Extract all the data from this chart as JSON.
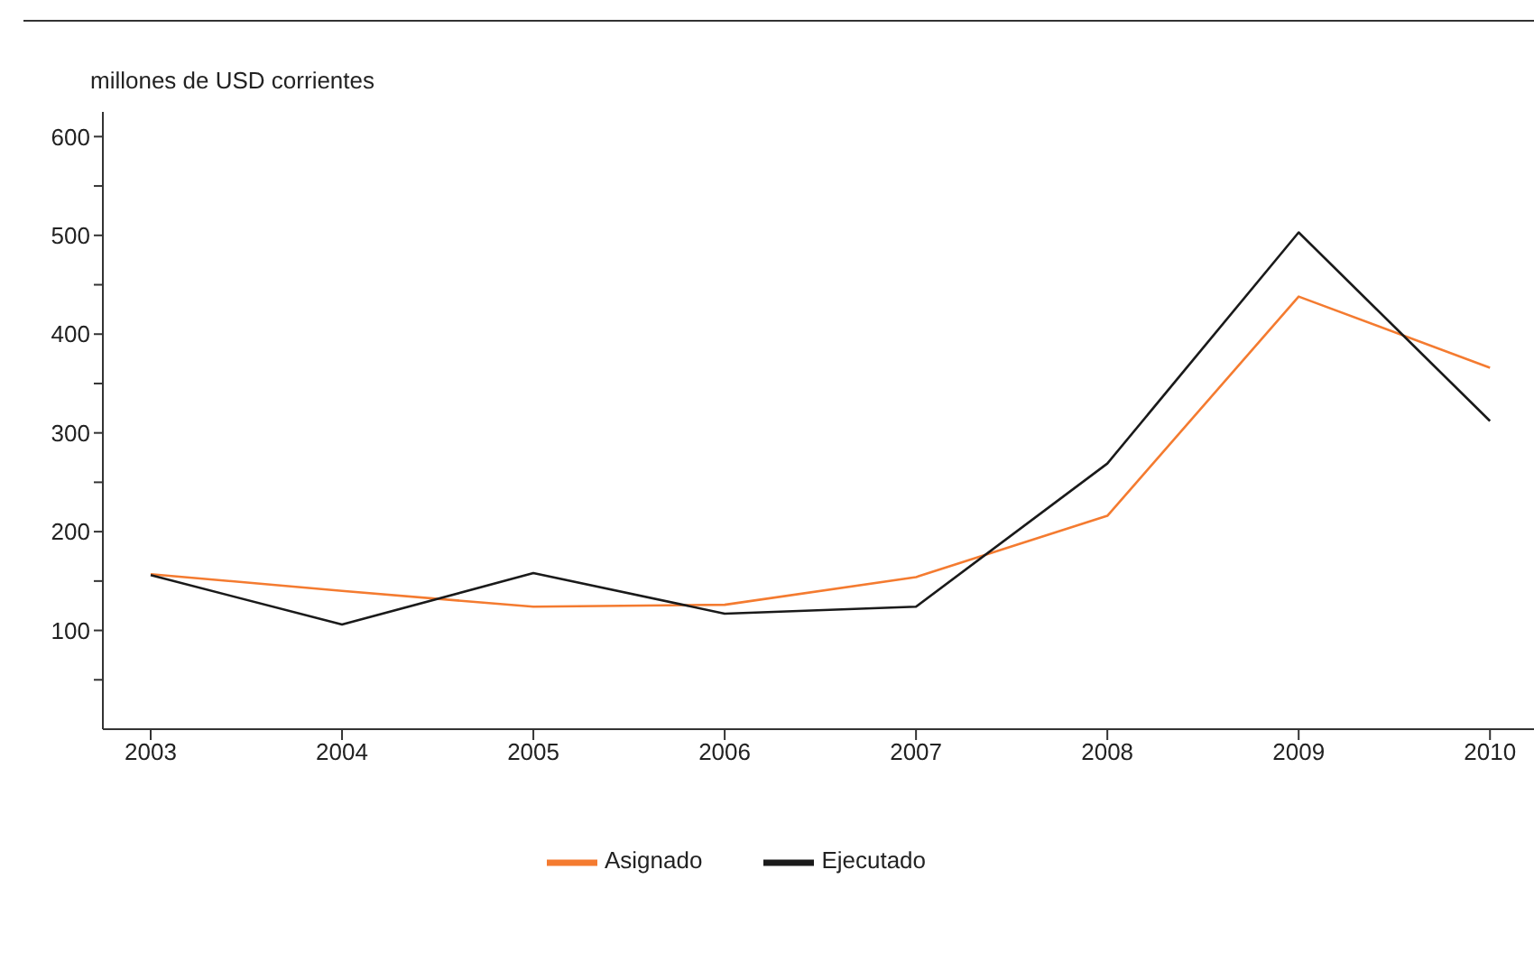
{
  "chart_data": {
    "type": "line",
    "ylabel": "millones de USD corrientes",
    "categories": [
      "2003",
      "2004",
      "2005",
      "2006",
      "2007",
      "2008",
      "2009",
      "2010"
    ],
    "series": [
      {
        "name": "Asignado",
        "color": "#f47b30",
        "values": [
          157,
          140,
          124,
          126,
          154,
          216,
          438,
          366
        ]
      },
      {
        "name": "Ejecutado",
        "color": "#1a1a1a",
        "values": [
          156,
          106,
          158,
          117,
          124,
          269,
          503,
          312
        ]
      }
    ],
    "ylim": [
      0,
      625
    ],
    "yticks": [
      {
        "value": 50,
        "label": null
      },
      100,
      {
        "value": 150,
        "label": null
      },
      200,
      {
        "value": 250,
        "label": null
      },
      300,
      {
        "value": 350,
        "label": null
      },
      400,
      {
        "value": 450,
        "label": null
      },
      500,
      {
        "value": 550,
        "label": null
      },
      600
    ],
    "grid": false,
    "legend": "bottom",
    "marker": "none",
    "line_style": "solid"
  }
}
